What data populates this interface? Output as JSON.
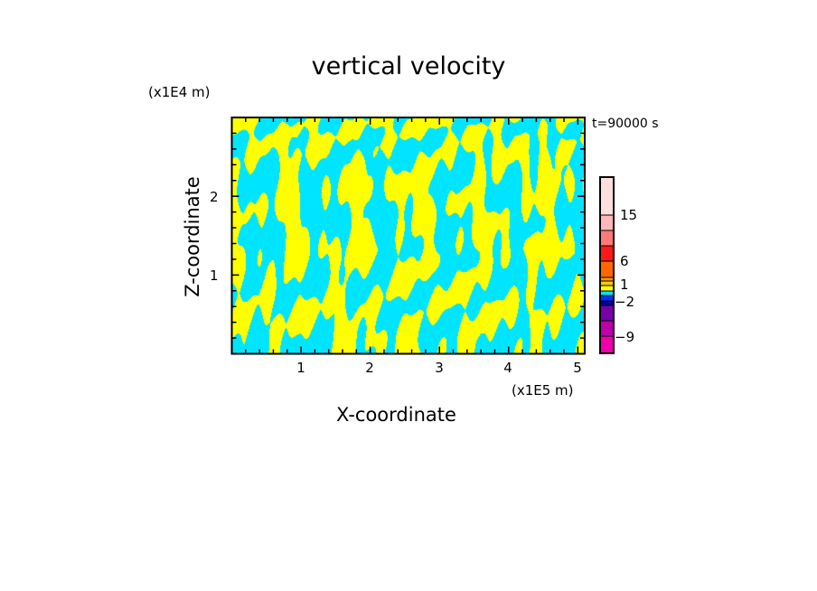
{
  "chart_data": {
    "type": "heatmap",
    "title": "vertical velocity",
    "xlabel": "X-coordinate",
    "ylabel": "Z-coordinate",
    "x_unit": "(x1E5 m)",
    "y_unit": "(x1E4 m)",
    "annotation": "t=90000 s",
    "xlim": [
      0,
      5.1
    ],
    "ylim": [
      0,
      3.0
    ],
    "x_ticks": [
      1,
      2,
      3,
      4,
      5
    ],
    "y_ticks": [
      1,
      2
    ],
    "colorbar": {
      "labels": [
        "15",
        "6",
        "1",
        "−2",
        "−9"
      ],
      "colors": [
        "#ffdede",
        "#ffb8b8",
        "#ff7878",
        "#ff1818",
        "#ff6600",
        "#ff9900",
        "#ffcc00",
        "#ffff00",
        "#00e5ff",
        "#0033ff",
        "#0000aa",
        "#7700aa",
        "#bb00aa",
        "#ee00aa"
      ]
    },
    "field_colors": {
      "positive": "#ffff00",
      "negative": "#00e5ff"
    }
  }
}
